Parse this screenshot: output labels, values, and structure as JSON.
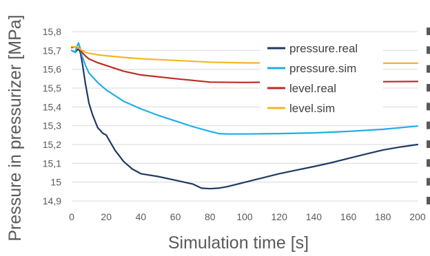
{
  "chart_data": {
    "type": "line",
    "xlabel": "Simulation time [s]",
    "ylabel": "Pressure in pressurizer [MPa]",
    "xlim": [
      0,
      200
    ],
    "ylim": [
      14.9,
      15.8
    ],
    "x_ticks": [
      "0",
      "20",
      "40",
      "60",
      "80",
      "100",
      "120",
      "140",
      "160",
      "180",
      "200"
    ],
    "y_ticks": [
      "14,9",
      "15",
      "15,1",
      "15,2",
      "15,3",
      "15,4",
      "15,5",
      "15,6",
      "15,7",
      "15,8"
    ],
    "grid": "horizontal",
    "legend_position": "top-right",
    "series": [
      {
        "name": "pressure.real",
        "color": "#1f3864",
        "x": [
          0,
          2,
          4,
          5,
          6,
          8,
          10,
          12,
          15,
          18,
          20,
          25,
          30,
          35,
          40,
          50,
          60,
          70,
          75,
          80,
          85,
          90,
          100,
          110,
          120,
          130,
          140,
          150,
          160,
          170,
          180,
          190,
          200
        ],
        "y": [
          15.7,
          15.69,
          15.71,
          15.69,
          15.64,
          15.52,
          15.42,
          15.36,
          15.29,
          15.26,
          15.25,
          15.17,
          15.11,
          15.07,
          15.045,
          15.03,
          15.01,
          14.99,
          14.968,
          14.965,
          14.968,
          14.976,
          14.999,
          15.022,
          15.045,
          15.064,
          15.083,
          15.103,
          15.126,
          15.149,
          15.171,
          15.187,
          15.2
        ]
      },
      {
        "name": "pressure.sim",
        "color": "#1faee6",
        "x": [
          0,
          2,
          3,
          4,
          5,
          6,
          8,
          10,
          15,
          20,
          30,
          40,
          50,
          60,
          70,
          80,
          85,
          90,
          100,
          120,
          140,
          160,
          180,
          200
        ],
        "y": [
          15.7,
          15.69,
          15.72,
          15.74,
          15.71,
          15.67,
          15.62,
          15.58,
          15.53,
          15.49,
          15.43,
          15.39,
          15.355,
          15.325,
          15.295,
          15.27,
          15.258,
          15.256,
          15.256,
          15.258,
          15.262,
          15.27,
          15.281,
          15.298
        ]
      },
      {
        "name": "level.real",
        "color": "#be2b25",
        "x": [
          0,
          2,
          4,
          6,
          8,
          10,
          15,
          20,
          30,
          40,
          60,
          80,
          100,
          120,
          140,
          160,
          180,
          200
        ],
        "y": [
          15.715,
          15.72,
          15.715,
          15.69,
          15.67,
          15.655,
          15.635,
          15.62,
          15.59,
          15.57,
          15.55,
          15.532,
          15.53,
          15.532,
          15.533,
          15.533,
          15.534,
          15.535
        ]
      },
      {
        "name": "level.sim",
        "color": "#f5b526",
        "x": [
          0,
          3,
          6,
          8,
          10,
          15,
          20,
          30,
          40,
          60,
          80,
          100,
          120,
          140,
          160,
          180,
          200
        ],
        "y": [
          15.72,
          15.72,
          15.7,
          15.69,
          15.685,
          15.677,
          15.672,
          15.663,
          15.656,
          15.647,
          15.638,
          15.634,
          15.633,
          15.632,
          15.632,
          15.632,
          15.632
        ]
      }
    ]
  }
}
